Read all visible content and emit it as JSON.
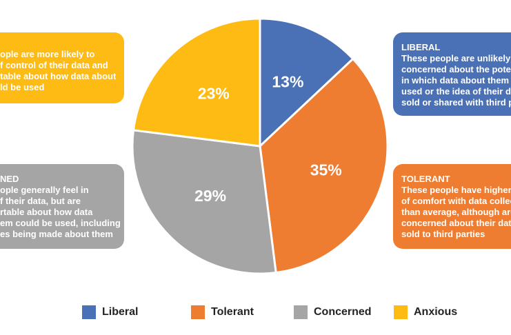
{
  "chart_data": {
    "type": "pie",
    "categories": [
      "Liberal",
      "Tolerant",
      "Concerned",
      "Anxious"
    ],
    "values": [
      13,
      35,
      29,
      23
    ],
    "labels": [
      "13%",
      "35%",
      "29%",
      "23%"
    ],
    "colors": [
      "#4a70b6",
      "#ee7c31",
      "#a5a5a5",
      "#fdbb13"
    ],
    "legend": "bottom"
  },
  "boxes": {
    "anxious": {
      "lines": [
        "ople are more likely to",
        "f control of their data and",
        "table about how data about",
        "ld be used"
      ]
    },
    "concerned": {
      "lines": [
        "NED",
        "ople generally feel in",
        "f their data, but are",
        "rtable about how data",
        "em could be used, including",
        "es being made about them"
      ]
    },
    "liberal": {
      "lines": [
        "LIBERAL",
        "These people are unlikely t",
        "concerned about the poten",
        "in which data about them c",
        "used or the idea of their da",
        "sold or shared with third pa"
      ]
    },
    "tolerant": {
      "lines": [
        "TOLERANT",
        "These people have higher l",
        "of comfort with data collec",
        "than average, although are",
        "concerned about their data",
        "sold to third parties"
      ]
    }
  }
}
